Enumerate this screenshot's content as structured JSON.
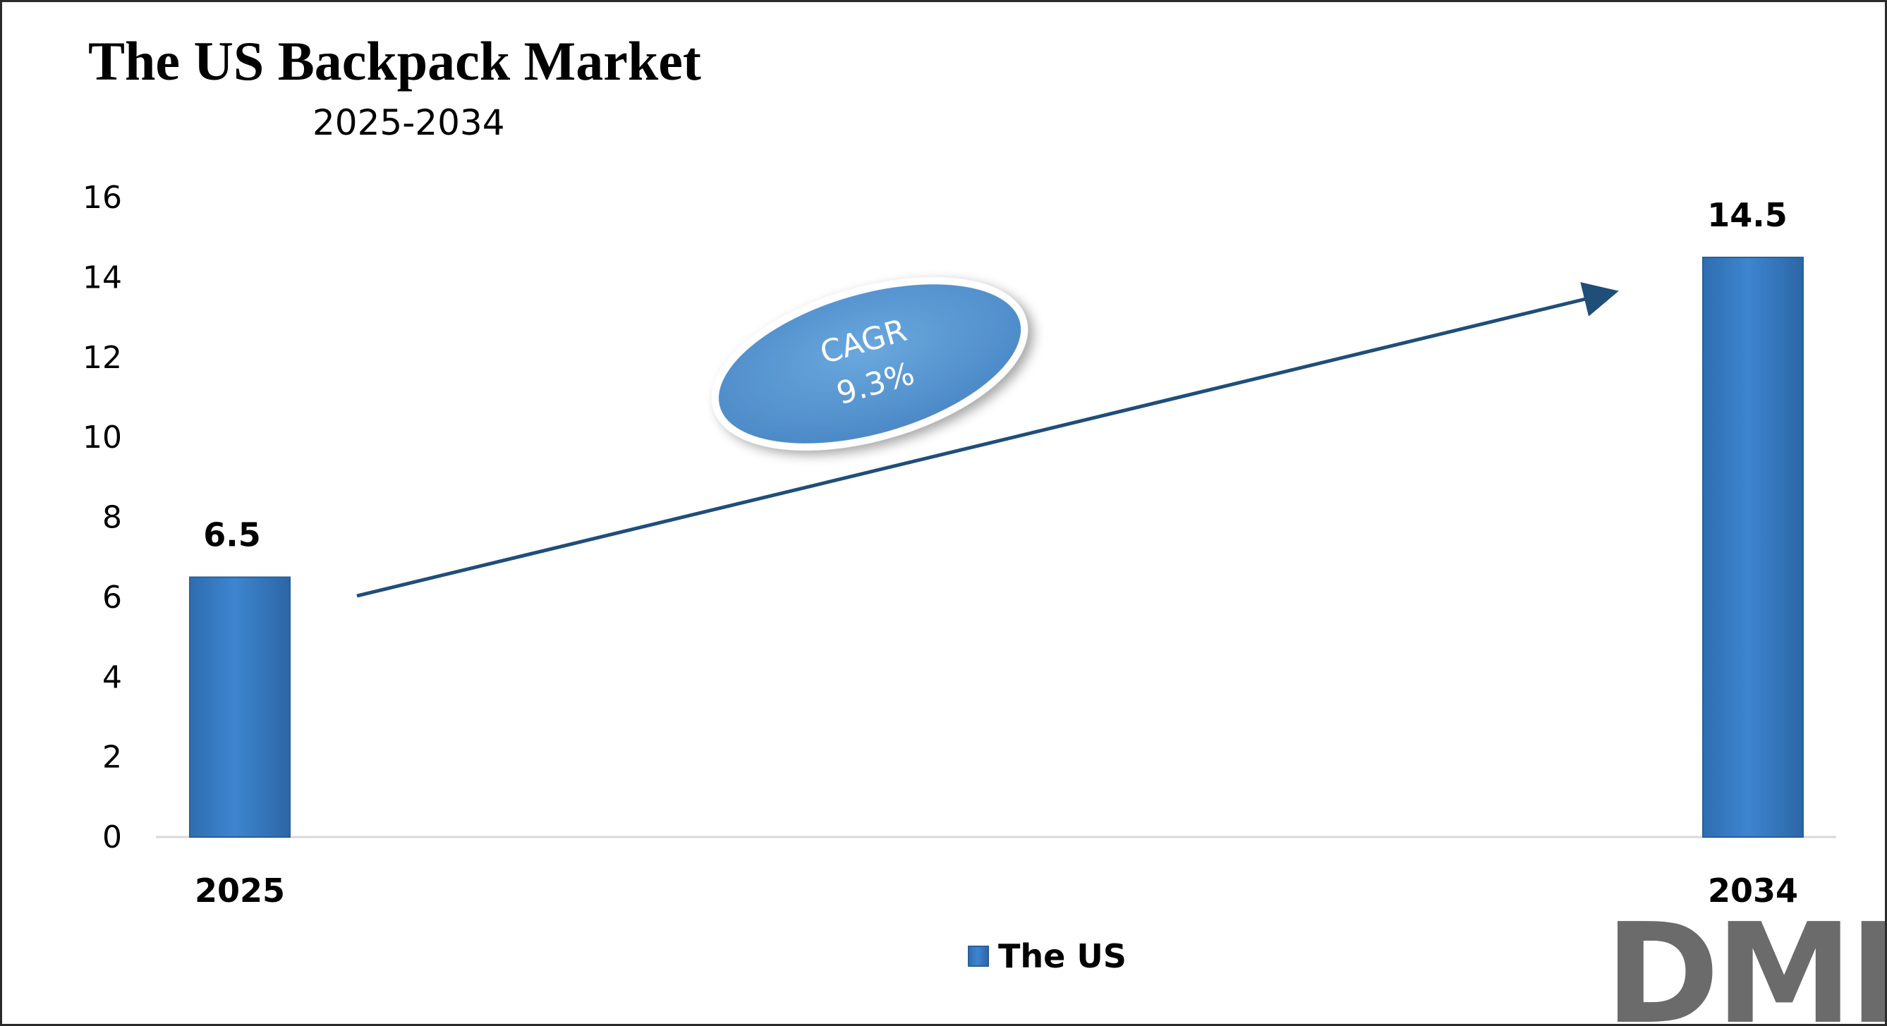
{
  "colors": {
    "bar": "#3a7dc4",
    "bar_edge": "#2a5f99",
    "arrow": "#1f4e79",
    "ellipse_fill": "#5b9bd5",
    "ellipse_stroke": "#ffffff",
    "logo_dm": "#6b6b6b",
    "logo_r": "#e2433a"
  },
  "annotation": {
    "cagr_label": "CAGR",
    "cagr_value": "9.3%"
  },
  "logo": {
    "text": "DMR"
  },
  "chart_data": {
    "type": "bar",
    "title": "The US Backpack Market",
    "subtitle": "2025-2034",
    "categories": [
      "2025",
      "2034"
    ],
    "series": [
      {
        "name": "The US",
        "values": [
          6.5,
          14.5
        ]
      }
    ],
    "data_labels": [
      "6.5",
      "14.5"
    ],
    "ylim": [
      0,
      16
    ],
    "yticks": [
      0,
      2,
      4,
      6,
      8,
      10,
      12,
      14,
      16
    ],
    "xlabel": "",
    "ylabel": "",
    "grid": false,
    "legend": "bottom-center"
  }
}
